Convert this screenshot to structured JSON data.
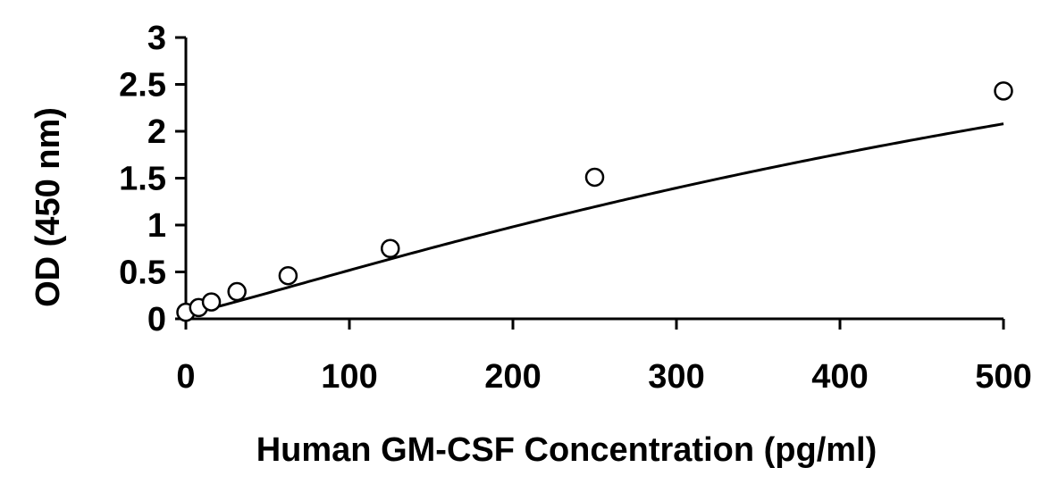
{
  "chart_data": {
    "type": "scatter",
    "title": "",
    "xlabel": "Human GM-CSF Concentration (pg/ml)",
    "ylabel": "OD (450 nm)",
    "xlim": [
      0,
      500
    ],
    "ylim": [
      0,
      3
    ],
    "x_ticks": [
      "0",
      "100",
      "200",
      "300",
      "400",
      "500"
    ],
    "y_ticks": [
      "0",
      "0.5",
      "1",
      "1.5",
      "2",
      "2.5",
      "3"
    ],
    "grid": false,
    "legend": "none",
    "series": [
      {
        "x": [
          0,
          7.8,
          15.6,
          31.25,
          62.5,
          125,
          250,
          500
        ],
        "y": [
          0.07,
          0.12,
          0.18,
          0.29,
          0.46,
          0.75,
          1.51,
          2.43
        ],
        "marker": "open-circle",
        "fit_line": true
      }
    ],
    "colors": {
      "marker": "#000000",
      "line": "#000000",
      "axis": "#000000"
    }
  }
}
